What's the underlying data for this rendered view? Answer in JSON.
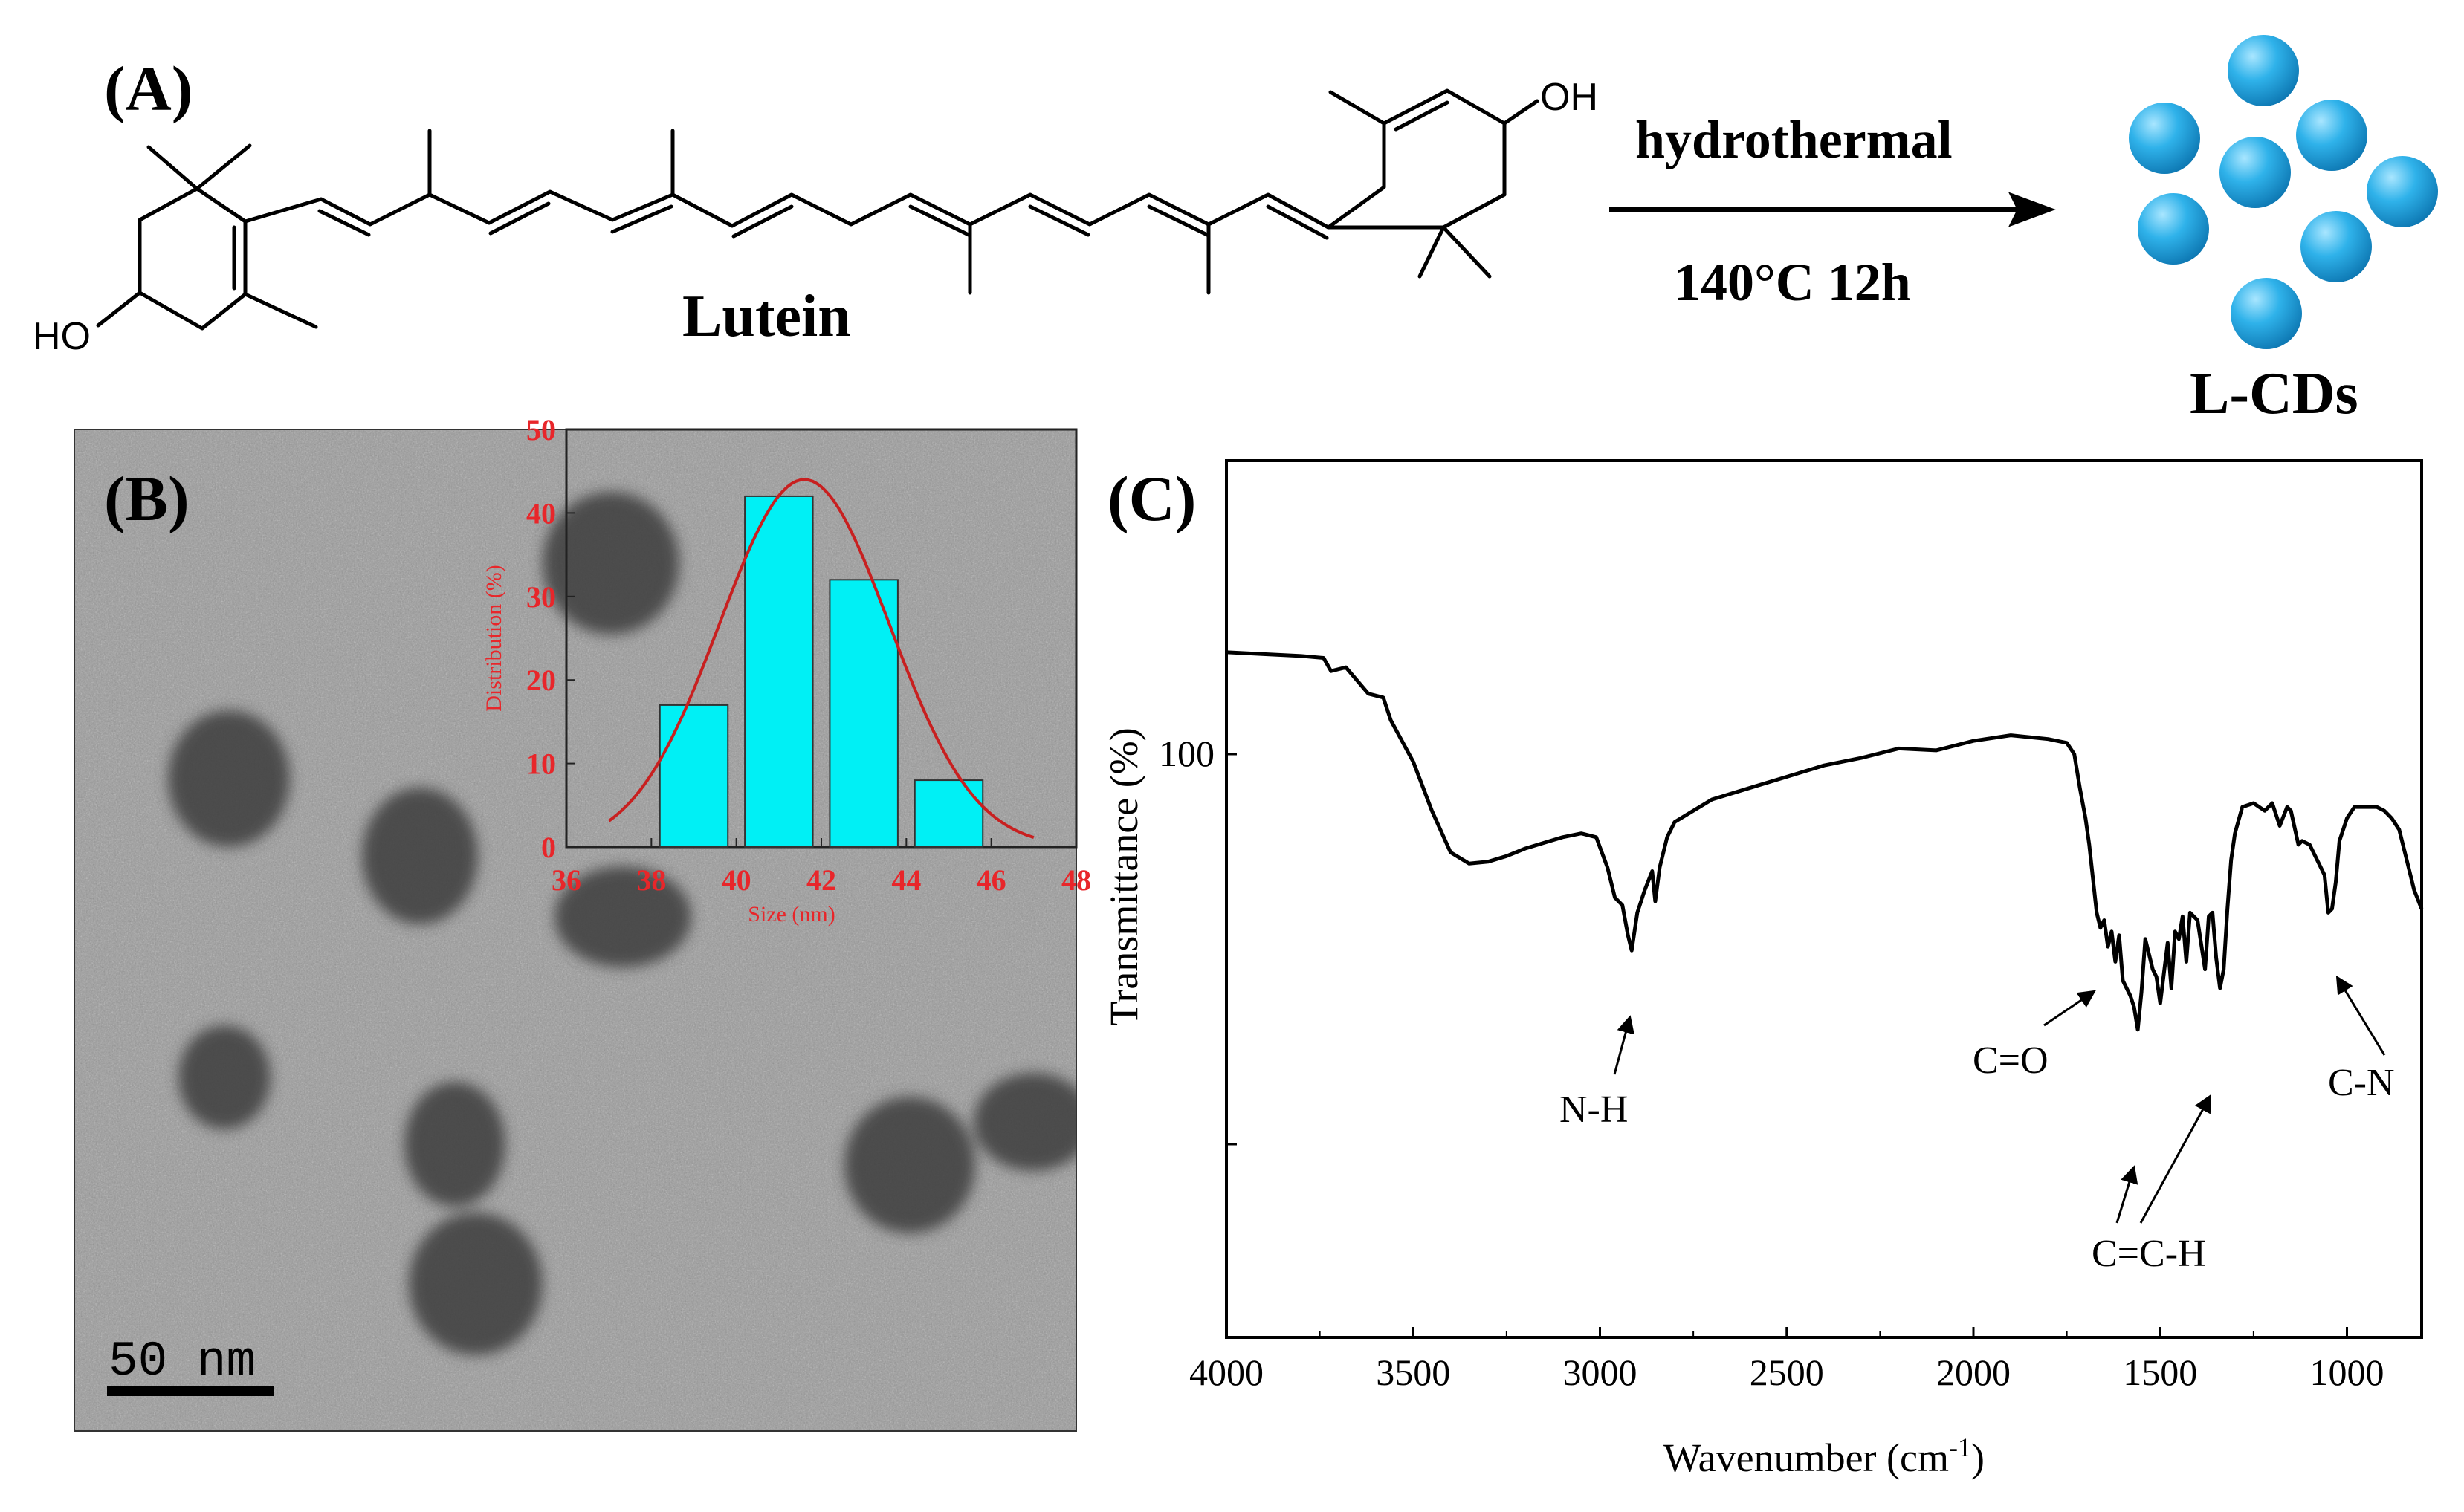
{
  "panel_a": {
    "label": "(A)",
    "molecule_name": "Lutein",
    "left_oh": "HO",
    "right_oh": "OH",
    "arrow_top": "hydrothermal",
    "arrow_bottom": "140°C 12h",
    "product": "L-CDs",
    "dot_color": "#23a6df"
  },
  "panel_b": {
    "label": "(B)",
    "scale_bar": "50 nm",
    "inset_color": "#e8262a",
    "bar_color": "#00f0f5"
  },
  "panel_c": {
    "label": "(C)",
    "y_tick": "100",
    "annotations": [
      "N-H",
      "C=O",
      "C=C-H",
      "C-N"
    ]
  },
  "chart_data": [
    {
      "type": "bar",
      "xlabel": "Size (nm)",
      "ylabel": "Distribution (%)",
      "xlim": [
        36,
        48
      ],
      "ylim": [
        0,
        50
      ],
      "x_ticks": [
        36,
        38,
        40,
        42,
        44,
        46,
        48
      ],
      "y_ticks": [
        0,
        10,
        20,
        30,
        40,
        50
      ],
      "bars": [
        {
          "x0": 38.2,
          "x1": 39.8,
          "value": 17
        },
        {
          "x0": 40.2,
          "x1": 41.8,
          "value": 42
        },
        {
          "x0": 42.2,
          "x1": 43.8,
          "value": 32
        },
        {
          "x0": 44.2,
          "x1": 45.8,
          "value": 8
        }
      ],
      "fit": {
        "type": "gaussian",
        "mean": 41.6,
        "sigma": 2.0,
        "peak": 44
      }
    },
    {
      "type": "line",
      "xlabel": "Wavenumber (cm-1)",
      "ylabel": "Transmittance (%)",
      "xlim": [
        4000,
        800
      ],
      "x_ticks": [
        4000,
        3500,
        3000,
        2500,
        2000,
        1500,
        1000
      ],
      "x_reversed": true,
      "y_marked": 100,
      "series": [
        {
          "x": [
            4000,
            3900,
            3800,
            3740,
            3720,
            3680,
            3620,
            3580,
            3560,
            3500,
            3450,
            3400,
            3350,
            3300,
            3250,
            3200,
            3150,
            3100,
            3050,
            3010,
            2980,
            2960,
            2940,
            2925,
            2915,
            2900,
            2880,
            2860,
            2852,
            2840,
            2820,
            2800,
            2700,
            2600,
            2500,
            2400,
            2300,
            2200,
            2100,
            2000,
            1900,
            1800,
            1750,
            1730,
            1715,
            1700,
            1690,
            1680,
            1670,
            1660,
            1650,
            1640,
            1630,
            1620,
            1610,
            1600,
            1580,
            1570,
            1560,
            1550,
            1540,
            1530,
            1520,
            1510,
            1500,
            1490,
            1480,
            1470,
            1460,
            1450,
            1440,
            1430,
            1420,
            1400,
            1380,
            1370,
            1360,
            1350,
            1340,
            1330,
            1320,
            1310,
            1300,
            1280,
            1250,
            1220,
            1200,
            1180,
            1160,
            1150,
            1130,
            1120,
            1100,
            1080,
            1060,
            1050,
            1040,
            1030,
            1020,
            1000,
            980,
            950,
            920,
            900,
            880,
            860,
            840,
            820,
            800
          ],
          "y": [
            127,
            126.5,
            126,
            125.5,
            122,
            123,
            116,
            115,
            109,
            98,
            85,
            74,
            71,
            71.5,
            73,
            75,
            76.5,
            78,
            79,
            78,
            70,
            62,
            60,
            52,
            48,
            58,
            64,
            69,
            61,
            70,
            78,
            82,
            88,
            91,
            94,
            97,
            99,
            101.5,
            101,
            103.5,
            105,
            104,
            103,
            100,
            91,
            83,
            76,
            67,
            58,
            54,
            56,
            49,
            53,
            45,
            52,
            40,
            36,
            33,
            27,
            37,
            51,
            47,
            43,
            41,
            34,
            42,
            50,
            38,
            53,
            51,
            57,
            45,
            58,
            56,
            43,
            57,
            58,
            46,
            38,
            43,
            59,
            72,
            79,
            86,
            87,
            85,
            87,
            81,
            86,
            85,
            76,
            77,
            76,
            72,
            68,
            58,
            59,
            66,
            77,
            83,
            86,
            86,
            86,
            85,
            83,
            80,
            72,
            64,
            59
          ]
        }
      ]
    }
  ]
}
